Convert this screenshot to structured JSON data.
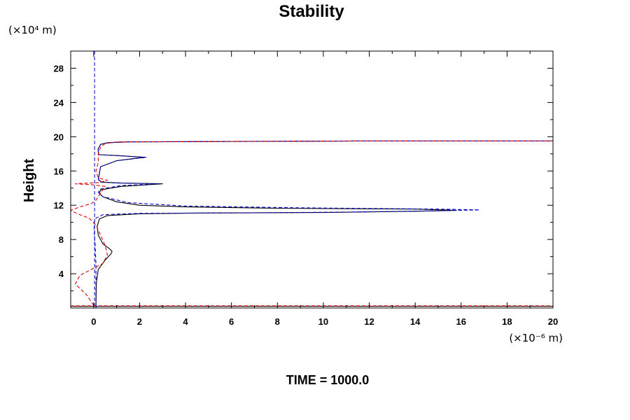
{
  "chart_data": {
    "type": "line",
    "title": "Stability",
    "ylabel": "Height",
    "xlabel": "",
    "y_unit": "(×10⁴ m)",
    "x_unit": "(×10⁻⁶ m)",
    "footer": "TIME = 1000.0",
    "xlim": [
      -1,
      20
    ],
    "ylim": [
      0,
      30
    ],
    "xticks": [
      0,
      2,
      4,
      6,
      8,
      10,
      12,
      14,
      16,
      18,
      20
    ],
    "yticks": [
      4,
      8,
      12,
      16,
      20,
      24,
      28
    ],
    "grid": false,
    "legend": "none",
    "series": [
      {
        "color": "#000000",
        "dash": "solid",
        "x": [
          0.1,
          0.1,
          0.12,
          0.2,
          0.5,
          0.75,
          0.8,
          0.7,
          0.4,
          0.2,
          0.15,
          0.25,
          0.6,
          2,
          5,
          10,
          14,
          15.8,
          14,
          8,
          4,
          2,
          1,
          0.4,
          0.25,
          0.3,
          1.2,
          3,
          1.2,
          0.35,
          0.2,
          0.3,
          1,
          2.2,
          1,
          0.25,
          0.2,
          0.2,
          0.3,
          0.6,
          1.5,
          6,
          12,
          20
        ],
        "y": [
          0,
          0.5,
          3,
          4.5,
          5.6,
          6.3,
          6.6,
          6.9,
          7.5,
          8.5,
          9.5,
          10.4,
          10.8,
          11,
          11.1,
          11.15,
          11.3,
          11.4,
          11.55,
          11.65,
          11.8,
          12,
          12.4,
          13,
          13.4,
          13.8,
          14.2,
          14.5,
          14.6,
          14.7,
          15,
          16.5,
          17.2,
          17.6,
          17.8,
          17.9,
          18,
          18.6,
          19.1,
          19.3,
          19.4,
          19.45,
          19.5,
          19.5
        ]
      },
      {
        "color": "#0000cc",
        "dash": "dashed",
        "x": [
          0.1,
          0.1,
          0.1,
          0.06,
          0.02,
          0.02,
          0.1,
          0.4,
          2,
          6,
          11,
          15,
          16.8,
          15,
          9,
          4,
          1.5,
          0.4,
          0.2,
          0.3,
          1.2,
          2.8,
          1,
          0.3,
          0.2,
          0.3,
          1,
          2.3,
          1,
          0.25,
          0.2,
          0.2,
          0.3,
          0.6,
          1.5,
          6,
          12,
          20
        ],
        "y": [
          0,
          2,
          5,
          7.5,
          9,
          10,
          10.5,
          10.9,
          11.05,
          11.1,
          11.2,
          11.35,
          11.45,
          11.55,
          11.7,
          11.9,
          12.3,
          13,
          13.5,
          13.9,
          14.3,
          14.5,
          14.6,
          14.7,
          15,
          16.5,
          17.2,
          17.6,
          17.8,
          17.9,
          18,
          18.6,
          19.1,
          19.3,
          19.4,
          19.45,
          19.5,
          19.5
        ]
      },
      {
        "color": "#dd0000",
        "dash": "dashed",
        "x": [
          0,
          -0.3,
          -0.8,
          -0.6,
          -0.1,
          0.4,
          0.6,
          0.5,
          0.3,
          0.1,
          -0.2,
          -0.7,
          -1,
          -0.6,
          -0.1,
          0.1,
          0.5,
          -0.1,
          -0.8,
          0.2,
          0.6,
          0.2,
          0.1,
          0.2,
          0.2,
          0.3,
          0.5,
          1,
          5,
          12,
          20
        ],
        "y": [
          0.3,
          1.5,
          2.8,
          3.8,
          4.5,
          5.2,
          6.2,
          7.3,
          8.5,
          9.7,
          10.5,
          11,
          11.4,
          11.8,
          12.2,
          12.6,
          14.2,
          14.4,
          14.5,
          14.65,
          14.9,
          15.2,
          16,
          17,
          18,
          18.8,
          19.2,
          19.4,
          19.45,
          19.5,
          19.5
        ]
      }
    ],
    "baselines": [
      {
        "color": "#000000",
        "dash": "solid",
        "y": 0.2
      },
      {
        "color": "#dd0000",
        "dash": "dashed",
        "y": 0.25
      }
    ],
    "zero_line": {
      "color": "#0000cc",
      "dash": "dashed",
      "x": 0.04
    }
  }
}
